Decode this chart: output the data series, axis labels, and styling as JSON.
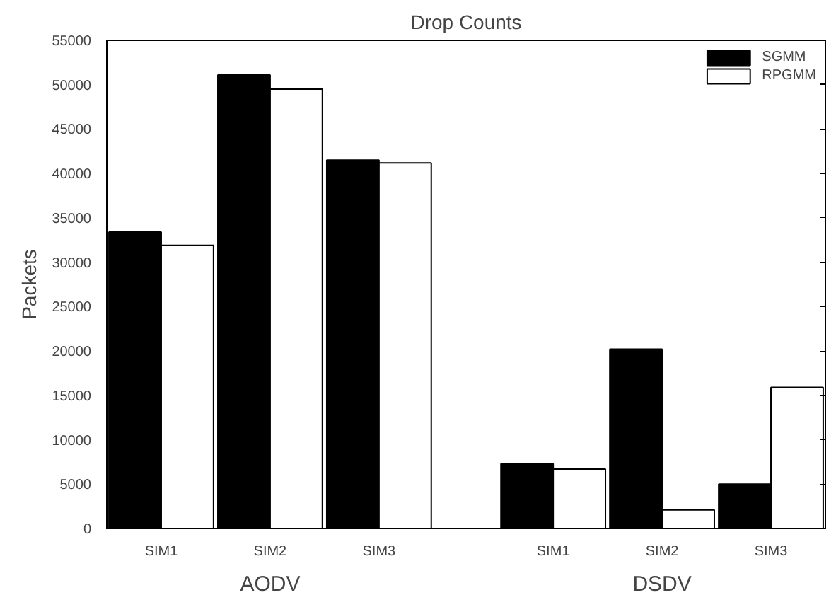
{
  "chart_data": {
    "type": "bar",
    "title": "Drop Counts",
    "ylabel": "Packets",
    "categories": [
      "SIM1",
      "SIM2",
      "SIM3",
      "SIM1",
      "SIM2",
      "SIM3"
    ],
    "annotations": [
      "AODV",
      "DSDV"
    ],
    "series": [
      {
        "name": "SGMM",
        "color": "#000000",
        "values": [
          33400,
          51100,
          41500,
          7300,
          20200,
          5000
        ]
      },
      {
        "name": "RPGMM",
        "color": "#ffffff",
        "values": [
          31900,
          49500,
          41200,
          6700,
          2100,
          15900
        ]
      }
    ],
    "ylim": [
      0,
      55000
    ],
    "yticks": [
      0,
      5000,
      10000,
      15000,
      20000,
      25000,
      30000,
      35000,
      40000,
      45000,
      50000,
      55000
    ],
    "grid": false,
    "legend": "top right"
  }
}
